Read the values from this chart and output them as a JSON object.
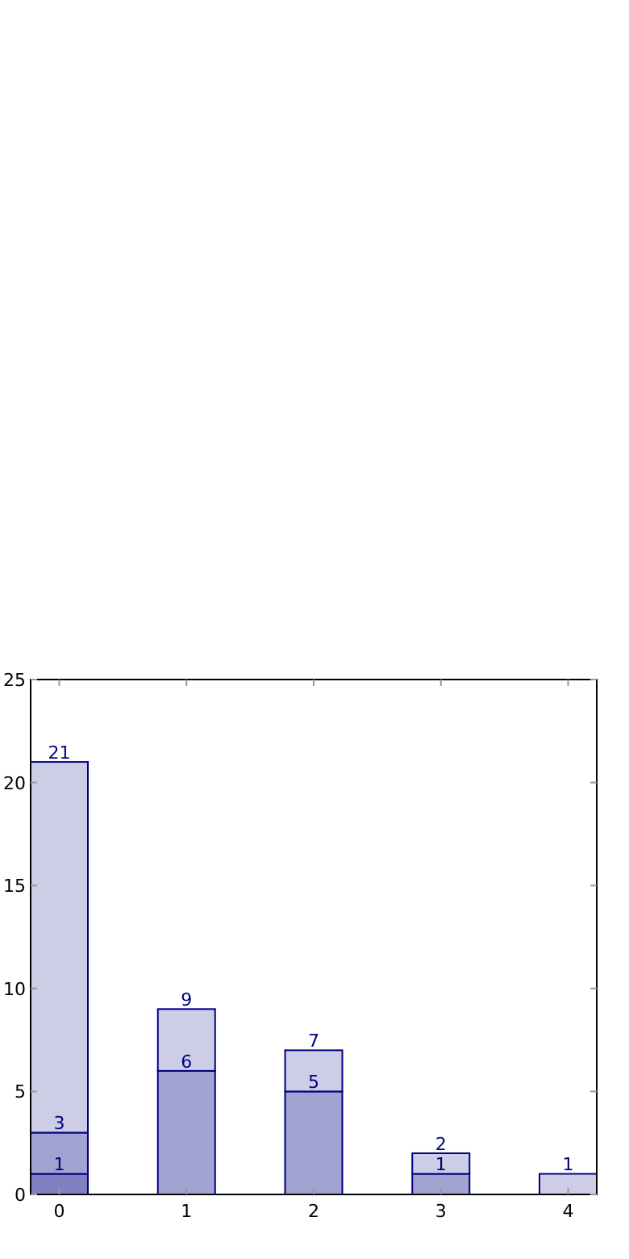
{
  "chart_data": {
    "type": "bar",
    "stacked": true,
    "x": [
      0,
      1,
      2,
      3,
      4
    ],
    "xlim": [
      -0.225,
      4.225
    ],
    "xticks": [
      0,
      1,
      2,
      3,
      4
    ],
    "ylim": [
      0,
      25
    ],
    "yticks": [
      0,
      5,
      10,
      15,
      20,
      25
    ],
    "grid": false,
    "series": [
      {
        "color": "#8181c1",
        "values": [
          1,
          null,
          null,
          null,
          null
        ]
      },
      {
        "color": "#a3a3d1",
        "values": [
          2,
          6,
          5,
          1,
          null
        ]
      },
      {
        "color": "#cdcde6",
        "values": [
          18,
          3,
          2,
          1,
          1
        ]
      }
    ],
    "annotations": [
      {
        "text": "1",
        "x": 0,
        "y": 1
      },
      {
        "text": "3",
        "x": 0,
        "y": 3
      },
      {
        "text": "21",
        "x": 0,
        "y": 21
      },
      {
        "text": "6",
        "x": 1,
        "y": 6
      },
      {
        "text": "9",
        "x": 1,
        "y": 9
      },
      {
        "text": "5",
        "x": 2,
        "y": 5
      },
      {
        "text": "7",
        "x": 2,
        "y": 7
      },
      {
        "text": "1",
        "x": 3,
        "y": 1
      },
      {
        "text": "2",
        "x": 3,
        "y": 2
      },
      {
        "text": "1",
        "x": 4,
        "y": 1
      }
    ]
  }
}
